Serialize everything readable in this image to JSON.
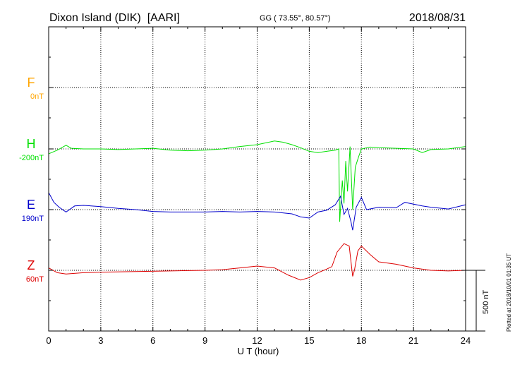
{
  "header": {
    "station": "Dixon Island (DIK)  [AARI]",
    "coords": "GG ( 73.55°,  80.57°)",
    "date": "2018/08/31"
  },
  "side_note": "Plotted at 2018/10/01 01:35 UT",
  "scale_label": "500 nT",
  "colors": {
    "F": "#ffa500",
    "H": "#00e000",
    "E": "#0000cc",
    "Z": "#dd0000",
    "grid": "#000000"
  },
  "chart_data": {
    "type": "line",
    "xlabel": "U T (hour)",
    "xlim": [
      0,
      24
    ],
    "xticks": [
      "0",
      "3",
      "6",
      "9",
      "12",
      "15",
      "18",
      "21",
      "24"
    ],
    "scale_nT": 500,
    "channels": [
      {
        "name": "F",
        "baseline_label": "0nT",
        "points": []
      },
      {
        "name": "H",
        "baseline_label": "-200nT",
        "points": [
          [
            0,
            -40
          ],
          [
            0.5,
            -10
          ],
          [
            1.0,
            30
          ],
          [
            1.3,
            5
          ],
          [
            2.0,
            0
          ],
          [
            3,
            0
          ],
          [
            4,
            -5
          ],
          [
            5,
            0
          ],
          [
            6,
            5
          ],
          [
            7,
            -10
          ],
          [
            8,
            -15
          ],
          [
            9,
            -10
          ],
          [
            10,
            0
          ],
          [
            11,
            20
          ],
          [
            12,
            35
          ],
          [
            12.5,
            50
          ],
          [
            13,
            65
          ],
          [
            13.5,
            55
          ],
          [
            14,
            35
          ],
          [
            14.5,
            10
          ],
          [
            15,
            -20
          ],
          [
            15.5,
            -30
          ],
          [
            16,
            -20
          ],
          [
            16.5,
            -10
          ],
          [
            16.7,
            0
          ],
          [
            16.75,
            -600
          ],
          [
            16.9,
            -260
          ],
          [
            17.0,
            -450
          ],
          [
            17.1,
            -100
          ],
          [
            17.2,
            -350
          ],
          [
            17.35,
            20
          ],
          [
            17.5,
            -500
          ],
          [
            17.65,
            -150
          ],
          [
            17.85,
            -60
          ],
          [
            18,
            0
          ],
          [
            18.5,
            15
          ],
          [
            19,
            10
          ],
          [
            20,
            5
          ],
          [
            21,
            0
          ],
          [
            21.5,
            -30
          ],
          [
            22,
            -5
          ],
          [
            23,
            0
          ],
          [
            24,
            20
          ]
        ]
      },
      {
        "name": "E",
        "baseline_label": "190nT",
        "points": [
          [
            0,
            140
          ],
          [
            0.3,
            60
          ],
          [
            0.6,
            20
          ],
          [
            1.0,
            -20
          ],
          [
            1.5,
            30
          ],
          [
            2,
            35
          ],
          [
            3,
            25
          ],
          [
            4,
            10
          ],
          [
            5,
            0
          ],
          [
            6,
            -15
          ],
          [
            7,
            -20
          ],
          [
            8,
            -20
          ],
          [
            9,
            -20
          ],
          [
            10,
            -15
          ],
          [
            11,
            -20
          ],
          [
            12,
            -15
          ],
          [
            13,
            -20
          ],
          [
            14,
            -35
          ],
          [
            14.5,
            -60
          ],
          [
            15,
            -70
          ],
          [
            15.5,
            -20
          ],
          [
            16,
            -5
          ],
          [
            16.5,
            40
          ],
          [
            16.8,
            110
          ],
          [
            17.0,
            -40
          ],
          [
            17.2,
            10
          ],
          [
            17.4,
            -100
          ],
          [
            17.5,
            -170
          ],
          [
            17.7,
            20
          ],
          [
            18,
            100
          ],
          [
            18.3,
            0
          ],
          [
            19,
            20
          ],
          [
            20,
            15
          ],
          [
            20.5,
            60
          ],
          [
            21.5,
            30
          ],
          [
            22,
            20
          ],
          [
            23,
            5
          ],
          [
            24,
            40
          ]
        ]
      },
      {
        "name": "Z",
        "baseline_label": "60nT",
        "points": [
          [
            0,
            20
          ],
          [
            0.5,
            -20
          ],
          [
            1,
            -30
          ],
          [
            2,
            -20
          ],
          [
            3,
            -15
          ],
          [
            5,
            -10
          ],
          [
            7,
            -5
          ],
          [
            9,
            0
          ],
          [
            10,
            5
          ],
          [
            11,
            20
          ],
          [
            12,
            35
          ],
          [
            13,
            20
          ],
          [
            13.8,
            -40
          ],
          [
            14.5,
            -80
          ],
          [
            15,
            -60
          ],
          [
            15.5,
            -20
          ],
          [
            16,
            10
          ],
          [
            16.3,
            30
          ],
          [
            16.6,
            150
          ],
          [
            17.0,
            220
          ],
          [
            17.3,
            200
          ],
          [
            17.5,
            -50
          ],
          [
            17.6,
            0
          ],
          [
            17.8,
            160
          ],
          [
            18,
            200
          ],
          [
            18.5,
            130
          ],
          [
            19,
            70
          ],
          [
            20,
            50
          ],
          [
            21,
            20
          ],
          [
            22,
            0
          ],
          [
            23,
            -5
          ],
          [
            24,
            0
          ]
        ]
      }
    ]
  }
}
